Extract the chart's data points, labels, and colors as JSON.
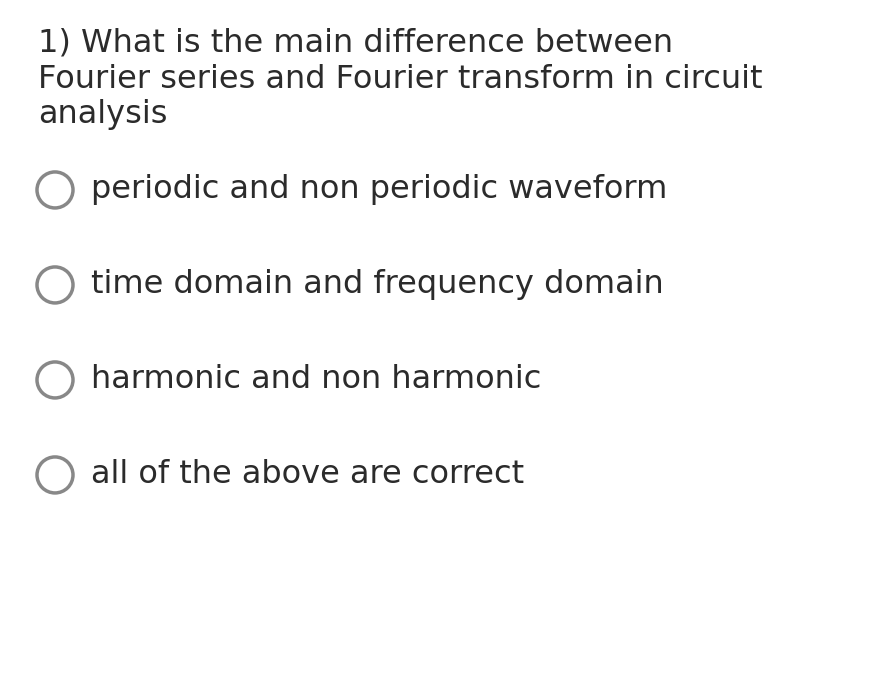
{
  "background_color": "#ffffff",
  "question_line1": "1) What is the main difference between",
  "question_line2": "Fourier series and Fourier transform in circuit",
  "question_line3": "analysis",
  "options": [
    "periodic and non periodic waveform",
    "time domain and frequency domain",
    "harmonic and non harmonic",
    "all of the above are correct"
  ],
  "question_font_size": 23,
  "option_font_size": 23,
  "text_color": "#2b2b2b",
  "circle_edge_color": "#888888",
  "circle_face_color": "#ffffff",
  "circle_linewidth": 2.5
}
